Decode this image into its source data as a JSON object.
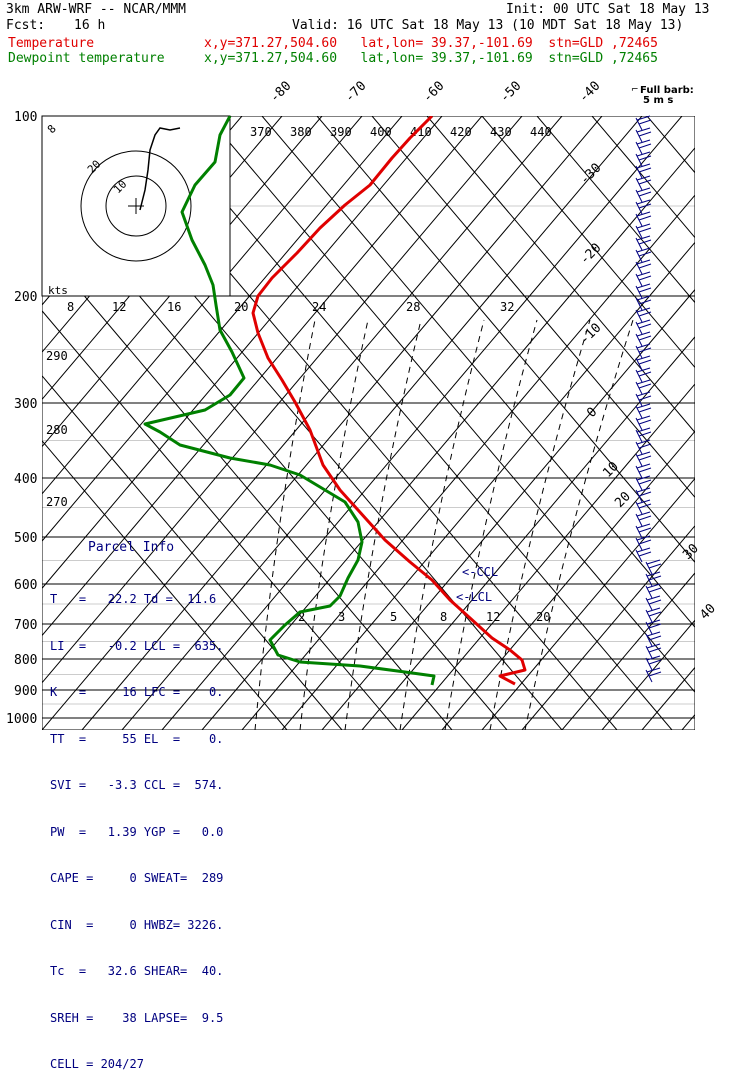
{
  "header": {
    "model": "3km ARW-WRF -- NCAR/MMM",
    "init": "Init: 00 UTC Sat 18 May 13",
    "fcst_label": "Fcst:",
    "fcst_value": "16 h",
    "valid": "Valid: 16 UTC Sat 18 May 13 (10 MDT Sat 18 May 13)",
    "temp_label": "Temperature",
    "temp_info": "x,y=371.27,504.60   lat,lon= 39.37,-101.69  stn=GLD ,72465",
    "dew_label": "Dewpoint temperature",
    "dew_info": "x,y=371.27,504.60   lat,lon= 39.37,-101.69  stn=GLD ,72465"
  },
  "barb_label": [
    "Full barb:",
    "5 m s"
  ],
  "hodograph": {
    "unit": "kts",
    "ring_labels": [
      "8",
      "12",
      "16",
      "20",
      "24",
      "28",
      "32"
    ]
  },
  "skewt": {
    "pressure_labels": [
      "100",
      "200",
      "300",
      "400",
      "500",
      "600",
      "700",
      "800",
      "900",
      "1000"
    ],
    "isotherm_labels": [
      "-80",
      "-70",
      "-60",
      "-50",
      "-40",
      "-30",
      "-20",
      "-10",
      "0",
      "10",
      "20",
      "30",
      "40"
    ],
    "theta_labels": [
      "370",
      "380",
      "390",
      "400",
      "410",
      "420",
      "430",
      "440"
    ],
    "left_labels": [
      "290",
      "280",
      "270"
    ],
    "mixing_labels": [
      "2",
      "3",
      "5",
      "8",
      "12",
      "20"
    ],
    "ccl_label": "<-CCL",
    "lcl_label": "<-LCL",
    "hodo_ring_labels": [
      "10",
      "20",
      "8"
    ]
  },
  "parcel_info": {
    "title": "Parcel Info",
    "rows": [
      "T   =   22.2 Td =  11.6",
      "LI  =   -0.2 LCL =  635.",
      "K   =     16 LFC =    0.",
      "TT  =     55 EL  =    0.",
      "SVI =   -3.3 CCL =  574.",
      "PW  =   1.39 YGP =   0.0",
      "CAPE =     0 SWEAT=  289",
      "CIN  =     0 HWBZ= 3226.",
      "Tc  =   32.6 SHEAR=  40.",
      "SREH =    38 LAPSE=  9.5",
      "CELL = 204/27"
    ]
  },
  "chart_data": {
    "type": "line",
    "title": "3km ARW-WRF -- NCAR/MMM",
    "xlabel": "",
    "ylabel": "",
    "ylim": [
      1000,
      100
    ],
    "pressure_levels": [
      100,
      200,
      300,
      400,
      500,
      600,
      700,
      800,
      900,
      1000
    ],
    "series": [
      {
        "name": "Temperature",
        "color": "#e00000",
        "points": [
          [
            432,
            116
          ],
          [
            410,
            138
          ],
          [
            392,
            158
          ],
          [
            370,
            185
          ],
          [
            345,
            205
          ],
          [
            320,
            228
          ],
          [
            297,
            253
          ],
          [
            272,
            278
          ],
          [
            258,
            296
          ],
          [
            253,
            313
          ],
          [
            258,
            333
          ],
          [
            268,
            358
          ],
          [
            282,
            380
          ],
          [
            295,
            402
          ],
          [
            310,
            430
          ],
          [
            323,
            465
          ],
          [
            340,
            490
          ],
          [
            358,
            510
          ],
          [
            385,
            540
          ],
          [
            410,
            562
          ],
          [
            432,
            580
          ],
          [
            450,
            600
          ],
          [
            470,
            618
          ],
          [
            492,
            638
          ],
          [
            510,
            650
          ],
          [
            522,
            660
          ],
          [
            525,
            670
          ],
          [
            500,
            676
          ],
          [
            515,
            684
          ]
        ]
      },
      {
        "name": "Dewpoint temperature",
        "color": "#008000",
        "points": [
          [
            230,
            116
          ],
          [
            220,
            135
          ],
          [
            215,
            162
          ],
          [
            195,
            185
          ],
          [
            182,
            212
          ],
          [
            192,
            240
          ],
          [
            205,
            265
          ],
          [
            213,
            285
          ],
          [
            216,
            305
          ],
          [
            220,
            330
          ],
          [
            232,
            352
          ],
          [
            244,
            378
          ],
          [
            230,
            395
          ],
          [
            205,
            410
          ],
          [
            145,
            424
          ],
          [
            160,
            432
          ],
          [
            180,
            445
          ],
          [
            230,
            458
          ],
          [
            270,
            465
          ],
          [
            300,
            475
          ],
          [
            325,
            490
          ],
          [
            345,
            502
          ],
          [
            358,
            522
          ],
          [
            362,
            542
          ],
          [
            358,
            560
          ],
          [
            348,
            578
          ],
          [
            340,
            596
          ],
          [
            330,
            606
          ],
          [
            300,
            612
          ],
          [
            285,
            625
          ],
          [
            270,
            640
          ],
          [
            278,
            655
          ],
          [
            300,
            662
          ],
          [
            360,
            666
          ],
          [
            405,
            672
          ],
          [
            434,
            676
          ],
          [
            432,
            685
          ]
        ]
      }
    ],
    "wind_barbs": "right column"
  }
}
